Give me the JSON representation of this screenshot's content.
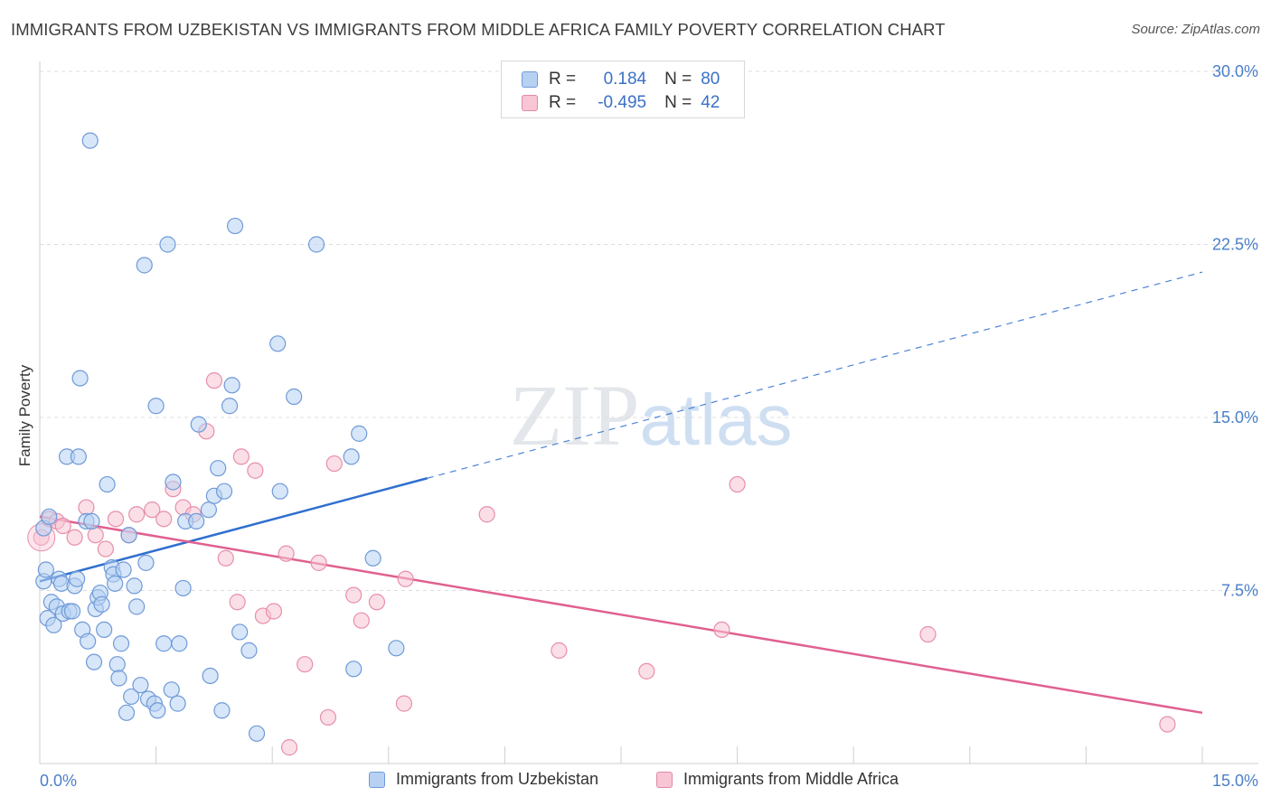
{
  "chart_data": {
    "type": "scatter",
    "title": "IMMIGRANTS FROM UZBEKISTAN VS IMMIGRANTS FROM MIDDLE AFRICA FAMILY POVERTY CORRELATION CHART",
    "source": "Source: ZipAtlas.com",
    "ylabel": "Family Poverty",
    "xlabel": "",
    "xlim": [
      0,
      15
    ],
    "ylim": [
      0,
      30
    ],
    "x_tick_labels": [
      "0.0%",
      "15.0%"
    ],
    "y_ticks": [
      7.5,
      15.0,
      22.5,
      30.0
    ],
    "y_tick_labels": [
      "7.5%",
      "15.0%",
      "22.5%",
      "30.0%"
    ],
    "watermark": "ZIPatlas",
    "legend": [
      {
        "r_label": "R =",
        "r_value": "0.184",
        "n_label": "N =",
        "n_value": "80"
      },
      {
        "r_label": "R =",
        "r_value": "-0.495",
        "n_label": "N =",
        "n_value": "42"
      }
    ],
    "series": [
      {
        "name": "Immigrants from Uzbekistan",
        "color": "#6f9ad8",
        "fill": "#b7d1f3",
        "line_color": "#2f6fcf",
        "trend": {
          "x0": 0,
          "y0": 7.9,
          "x_solid_end": 5.0,
          "x1": 15,
          "y1": 21.3
        },
        "points": [
          [
            0.05,
            10.2
          ],
          [
            0.05,
            7.9
          ],
          [
            0.08,
            8.4
          ],
          [
            0.1,
            6.3
          ],
          [
            0.12,
            10.7
          ],
          [
            0.15,
            7.0
          ],
          [
            0.18,
            6.0
          ],
          [
            0.22,
            6.8
          ],
          [
            0.25,
            8.0
          ],
          [
            0.28,
            7.8
          ],
          [
            0.3,
            6.5
          ],
          [
            0.35,
            13.3
          ],
          [
            0.38,
            6.6
          ],
          [
            0.42,
            6.6
          ],
          [
            0.45,
            7.7
          ],
          [
            0.48,
            8.0
          ],
          [
            0.5,
            13.3
          ],
          [
            0.52,
            16.7
          ],
          [
            0.55,
            5.8
          ],
          [
            0.6,
            10.5
          ],
          [
            0.62,
            5.3
          ],
          [
            0.65,
            27.0
          ],
          [
            0.67,
            10.5
          ],
          [
            0.7,
            4.4
          ],
          [
            0.72,
            6.7
          ],
          [
            0.75,
            7.2
          ],
          [
            0.78,
            7.4
          ],
          [
            0.8,
            6.9
          ],
          [
            0.83,
            5.8
          ],
          [
            0.87,
            12.1
          ],
          [
            0.93,
            8.5
          ],
          [
            0.95,
            8.2
          ],
          [
            0.97,
            7.8
          ],
          [
            1.0,
            4.3
          ],
          [
            1.02,
            3.7
          ],
          [
            1.05,
            5.2
          ],
          [
            1.08,
            8.4
          ],
          [
            1.12,
            2.2
          ],
          [
            1.15,
            9.9
          ],
          [
            1.18,
            2.9
          ],
          [
            1.22,
            7.7
          ],
          [
            1.25,
            6.8
          ],
          [
            1.3,
            3.4
          ],
          [
            1.35,
            21.6
          ],
          [
            1.37,
            8.7
          ],
          [
            1.4,
            2.8
          ],
          [
            1.48,
            2.6
          ],
          [
            1.5,
            15.5
          ],
          [
            1.52,
            2.3
          ],
          [
            1.6,
            5.2
          ],
          [
            1.65,
            22.5
          ],
          [
            1.7,
            3.2
          ],
          [
            1.72,
            12.2
          ],
          [
            1.78,
            2.6
          ],
          [
            1.8,
            5.2
          ],
          [
            1.85,
            7.6
          ],
          [
            1.88,
            10.5
          ],
          [
            2.02,
            10.5
          ],
          [
            2.05,
            14.7
          ],
          [
            2.18,
            11.0
          ],
          [
            2.2,
            3.8
          ],
          [
            2.25,
            11.6
          ],
          [
            2.3,
            12.8
          ],
          [
            2.35,
            2.3
          ],
          [
            2.38,
            11.8
          ],
          [
            2.45,
            15.5
          ],
          [
            2.48,
            16.4
          ],
          [
            2.52,
            23.3
          ],
          [
            2.58,
            5.7
          ],
          [
            2.7,
            4.9
          ],
          [
            2.8,
            1.3
          ],
          [
            3.07,
            18.2
          ],
          [
            3.1,
            11.8
          ],
          [
            3.28,
            15.9
          ],
          [
            3.57,
            22.5
          ],
          [
            4.02,
            13.3
          ],
          [
            4.05,
            4.1
          ],
          [
            4.12,
            14.3
          ],
          [
            4.3,
            8.9
          ],
          [
            4.6,
            5.0
          ]
        ]
      },
      {
        "name": "Immigrants from Middle Africa",
        "color": "#e88eab",
        "fill": "#f8c5d4",
        "line_color": "#e06090",
        "trend": {
          "x0": 0,
          "y0": 10.7,
          "x1": 15,
          "y1": 2.2
        },
        "points": [
          [
            0.02,
            9.8
          ],
          [
            0.12,
            10.6
          ],
          [
            0.22,
            10.5
          ],
          [
            0.3,
            10.3
          ],
          [
            0.45,
            9.8
          ],
          [
            0.6,
            11.1
          ],
          [
            0.72,
            9.9
          ],
          [
            0.85,
            9.3
          ],
          [
            0.98,
            10.6
          ],
          [
            1.15,
            9.9
          ],
          [
            1.25,
            10.8
          ],
          [
            1.45,
            11.0
          ],
          [
            1.6,
            10.6
          ],
          [
            1.72,
            11.9
          ],
          [
            1.85,
            11.1
          ],
          [
            1.98,
            10.8
          ],
          [
            2.15,
            14.4
          ],
          [
            2.25,
            16.6
          ],
          [
            2.4,
            8.9
          ],
          [
            2.55,
            7.0
          ],
          [
            2.6,
            13.3
          ],
          [
            2.78,
            12.7
          ],
          [
            2.88,
            6.4
          ],
          [
            3.02,
            6.6
          ],
          [
            3.18,
            9.1
          ],
          [
            3.22,
            0.7
          ],
          [
            3.42,
            4.3
          ],
          [
            3.6,
            8.7
          ],
          [
            3.72,
            2.0
          ],
          [
            3.8,
            13.0
          ],
          [
            4.05,
            7.3
          ],
          [
            4.15,
            6.2
          ],
          [
            4.35,
            7.0
          ],
          [
            4.72,
            8.0
          ],
          [
            4.7,
            2.6
          ],
          [
            5.77,
            10.8
          ],
          [
            6.7,
            4.9
          ],
          [
            7.83,
            4.0
          ],
          [
            8.8,
            5.8
          ],
          [
            9.0,
            12.1
          ],
          [
            11.46,
            5.6
          ],
          [
            14.55,
            1.7
          ]
        ]
      }
    ]
  }
}
